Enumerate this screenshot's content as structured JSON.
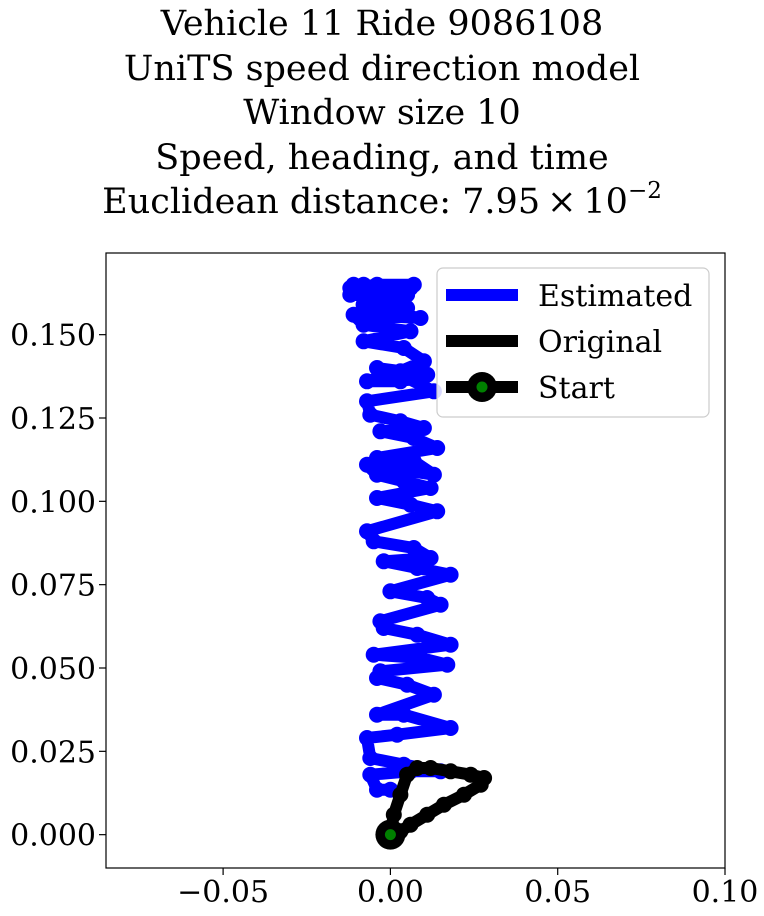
{
  "title": {
    "line1": "Vehicle 11 Ride 9086108",
    "line2": "UniTS speed direction model",
    "line3": "Window size 10",
    "line4": "Speed, heading, and time",
    "line5_prefix": "Euclidean distance: 7.95 × 10",
    "line5_exponent": "−2"
  },
  "chart_data": {
    "type": "line",
    "xlim": [
      -0.085,
      0.1
    ],
    "ylim": [
      -0.01,
      0.1745
    ],
    "grid": false,
    "legend_placement": "top-right",
    "x_ticks": [
      {
        "value": -0.05,
        "label": "−0.05"
      },
      {
        "value": 0.0,
        "label": "0.00"
      },
      {
        "value": 0.05,
        "label": "0.05"
      },
      {
        "value": 0.1,
        "label": "0.10"
      }
    ],
    "y_ticks": [
      {
        "value": 0.0,
        "label": "0.000"
      },
      {
        "value": 0.025,
        "label": "0.025"
      },
      {
        "value": 0.05,
        "label": "0.050"
      },
      {
        "value": 0.075,
        "label": "0.075"
      },
      {
        "value": 0.1,
        "label": "0.100"
      },
      {
        "value": 0.125,
        "label": "0.125"
      },
      {
        "value": 0.15,
        "label": "0.150"
      }
    ],
    "series": [
      {
        "name": "Estimated",
        "color": "#0000ff",
        "x": [
          0.0,
          -0.004,
          -0.006,
          0.006,
          0.015,
          0.004,
          -0.006,
          -0.007,
          0.002,
          0.018,
          0.004,
          -0.004,
          0.013,
          0.005,
          -0.004,
          -0.003,
          0.017,
          0.009,
          -0.005,
          0.018,
          0.008,
          -0.002,
          -0.003,
          0.015,
          0.011,
          0.0,
          0.018,
          0.008,
          -0.002,
          0.012,
          0.007,
          -0.005,
          -0.007,
          0.014,
          0.006,
          -0.004,
          0.012,
          0.004,
          -0.004,
          -0.007,
          0.013,
          0.007,
          -0.004,
          0.014,
          0.007,
          -0.003,
          0.01,
          0.003,
          -0.006,
          -0.007,
          0.013,
          0.005,
          -0.003,
          -0.004,
          0.011,
          0.003,
          -0.007,
          0.003,
          0.01,
          0.004,
          -0.008,
          0.006,
          -0.008,
          -0.011,
          0.009,
          -0.003,
          0.005,
          -0.008,
          0.003,
          -0.012,
          -0.008,
          -0.011,
          0.005,
          0.007,
          -0.004,
          -0.012,
          0.002,
          0.006
        ],
        "y": [
          0.0135,
          0.0135,
          0.018,
          0.019,
          0.019,
          0.021,
          0.023,
          0.029,
          0.03,
          0.032,
          0.036,
          0.036,
          0.042,
          0.045,
          0.047,
          0.049,
          0.051,
          0.053,
          0.054,
          0.057,
          0.06,
          0.062,
          0.064,
          0.069,
          0.071,
          0.073,
          0.078,
          0.08,
          0.082,
          0.083,
          0.086,
          0.088,
          0.091,
          0.097,
          0.099,
          0.101,
          0.104,
          0.106,
          0.108,
          0.111,
          0.108,
          0.112,
          0.113,
          0.116,
          0.119,
          0.121,
          0.122,
          0.124,
          0.126,
          0.13,
          0.133,
          0.137,
          0.138,
          0.14,
          0.138,
          0.136,
          0.136,
          0.139,
          0.142,
          0.146,
          0.148,
          0.151,
          0.153,
          0.156,
          0.155,
          0.157,
          0.158,
          0.159,
          0.161,
          0.162,
          0.165,
          0.165,
          0.162,
          0.165,
          0.165,
          0.164,
          0.163,
          0.164
        ]
      },
      {
        "name": "Original",
        "color": "#000000",
        "x": [
          0.0,
          0.001,
          0.003,
          0.005,
          0.008,
          0.012,
          0.018,
          0.024,
          0.028,
          0.027,
          0.022,
          0.016,
          0.011,
          0.006,
          0.003,
          0.0
        ],
        "y": [
          0.0,
          0.006,
          0.012,
          0.018,
          0.02,
          0.02,
          0.019,
          0.018,
          0.017,
          0.015,
          0.012,
          0.009,
          0.006,
          0.003,
          0.001,
          0.0
        ]
      }
    ],
    "start_point": {
      "name": "Start",
      "x": 0.0,
      "y": 0.0,
      "outer_color": "#000000",
      "inner_color": "#008000"
    }
  }
}
